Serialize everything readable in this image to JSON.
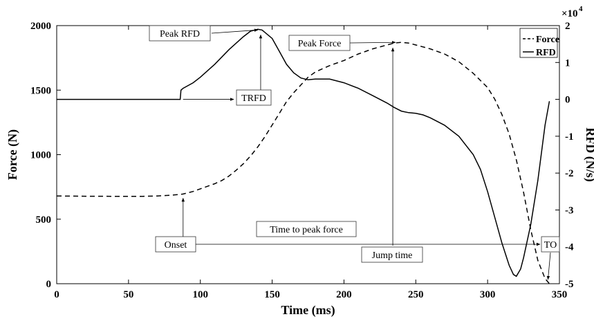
{
  "chart_data": {
    "type": "line",
    "xlabel": "Time (ms)",
    "ylabel_left": "Force (N)",
    "ylabel_right": "RFD (N/s)",
    "right_axis_multiplier": "×10",
    "right_axis_exponent": "4",
    "xlim": [
      0,
      350
    ],
    "ylim_left": [
      0,
      2000
    ],
    "ylim_right": [
      -5,
      2
    ],
    "x_ticks": [
      0,
      50,
      100,
      150,
      200,
      250,
      300,
      350
    ],
    "y_ticks_left": [
      0,
      500,
      1000,
      1500,
      2000
    ],
    "y_ticks_right": [
      -5,
      -4,
      -3,
      -2,
      -1,
      0,
      1,
      2
    ],
    "grid": false,
    "legend_position": "top-right",
    "series": [
      {
        "name": "Force",
        "axis": "left",
        "style": "dashed",
        "color": "#000000",
        "x": [
          0,
          20,
          40,
          60,
          70,
          80,
          88,
          95,
          100,
          110,
          115,
          120,
          125,
          130,
          135,
          140,
          145,
          150,
          155,
          160,
          165,
          170,
          175,
          180,
          190,
          200,
          210,
          220,
          230,
          235,
          240,
          245,
          250,
          260,
          270,
          280,
          290,
          300,
          305,
          310,
          315,
          320,
          325,
          330,
          335,
          340,
          343
        ],
        "y": [
          680,
          678,
          677,
          677,
          680,
          686,
          695,
          715,
          735,
          775,
          800,
          835,
          880,
          930,
          990,
          1060,
          1140,
          1230,
          1320,
          1410,
          1480,
          1540,
          1600,
          1640,
          1690,
          1730,
          1780,
          1820,
          1850,
          1865,
          1870,
          1865,
          1850,
          1820,
          1780,
          1720,
          1630,
          1520,
          1430,
          1310,
          1160,
          960,
          710,
          420,
          180,
          40,
          0
        ]
      },
      {
        "name": "RFD",
        "axis": "right",
        "style": "solid",
        "color": "#000000",
        "x": [
          0,
          86,
          86.5,
          88,
          95,
          100,
          110,
          120,
          130,
          135,
          140,
          143,
          150,
          155,
          160,
          165,
          170,
          175,
          180,
          190,
          200,
          210,
          220,
          230,
          235,
          240,
          245,
          250,
          255,
          260,
          270,
          280,
          290,
          295,
          300,
          305,
          310,
          315,
          318,
          320,
          323,
          325,
          330,
          335,
          340,
          343
        ],
        "y": [
          0,
          0,
          0.25,
          0.3,
          0.45,
          0.6,
          0.95,
          1.35,
          1.7,
          1.85,
          1.9,
          1.88,
          1.65,
          1.3,
          0.95,
          0.72,
          0.58,
          0.53,
          0.55,
          0.55,
          0.45,
          0.3,
          0.1,
          -0.1,
          -0.22,
          -0.32,
          -0.36,
          -0.38,
          -0.42,
          -0.5,
          -0.7,
          -1.0,
          -1.5,
          -1.9,
          -2.5,
          -3.2,
          -3.9,
          -4.5,
          -4.75,
          -4.8,
          -4.6,
          -4.3,
          -3.4,
          -2.2,
          -0.7,
          -0.05
        ]
      }
    ],
    "annotations": [
      {
        "label": "Peak RFD",
        "x": 142,
        "y_axis": "right",
        "y": 1.9
      },
      {
        "label": "TRFD",
        "x": 87,
        "y_axis": "right",
        "y": 0
      },
      {
        "label": "Peak Force",
        "x": 234,
        "y_axis": "left",
        "y": 1870
      },
      {
        "label": "Onset",
        "x": 88,
        "y_axis": "left",
        "y": 695
      },
      {
        "label": "Time to peak force",
        "x": 234,
        "y_axis": "left",
        "y": 360
      },
      {
        "label": "Jump time",
        "x": 343,
        "y_axis": "left",
        "y": 0
      },
      {
        "label": "TO",
        "x": 343,
        "y_axis": "left",
        "y": 0
      }
    ]
  }
}
